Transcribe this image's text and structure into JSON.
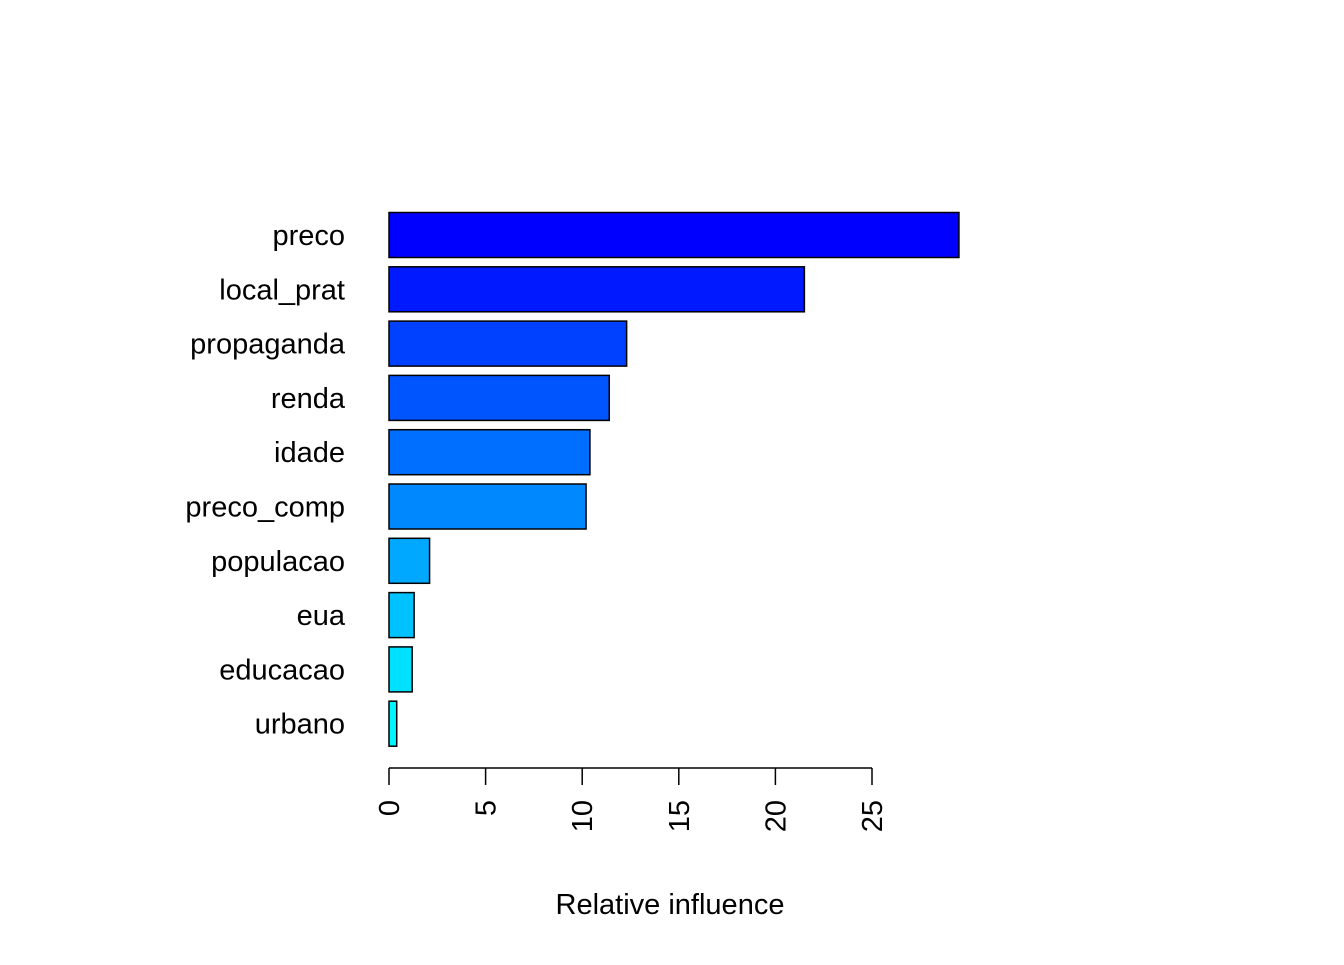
{
  "chart_data": {
    "type": "bar",
    "orientation": "horizontal",
    "title": "",
    "xlabel": "Relative influence",
    "ylabel": "",
    "categories": [
      "preco",
      "local_prat",
      "propaganda",
      "renda",
      "idade",
      "preco_comp",
      "populacao",
      "eua",
      "educacao",
      "urbano"
    ],
    "values": [
      29.5,
      21.5,
      12.3,
      11.4,
      10.4,
      10.2,
      2.1,
      1.3,
      1.2,
      0.4
    ],
    "bar_colors": [
      "#0000FF",
      "#0019FF",
      "#0040FF",
      "#0055FF",
      "#006EFF",
      "#0088FF",
      "#00A8FF",
      "#00C2FF",
      "#00E0FF",
      "#00F5FF"
    ],
    "xlim": [
      0,
      29.5
    ],
    "xticks": [
      0,
      5,
      10,
      15,
      20,
      25
    ],
    "xtick_labels": [
      "0",
      "5",
      "10",
      "15",
      "20",
      "25"
    ],
    "grid": false,
    "legend": "none"
  }
}
